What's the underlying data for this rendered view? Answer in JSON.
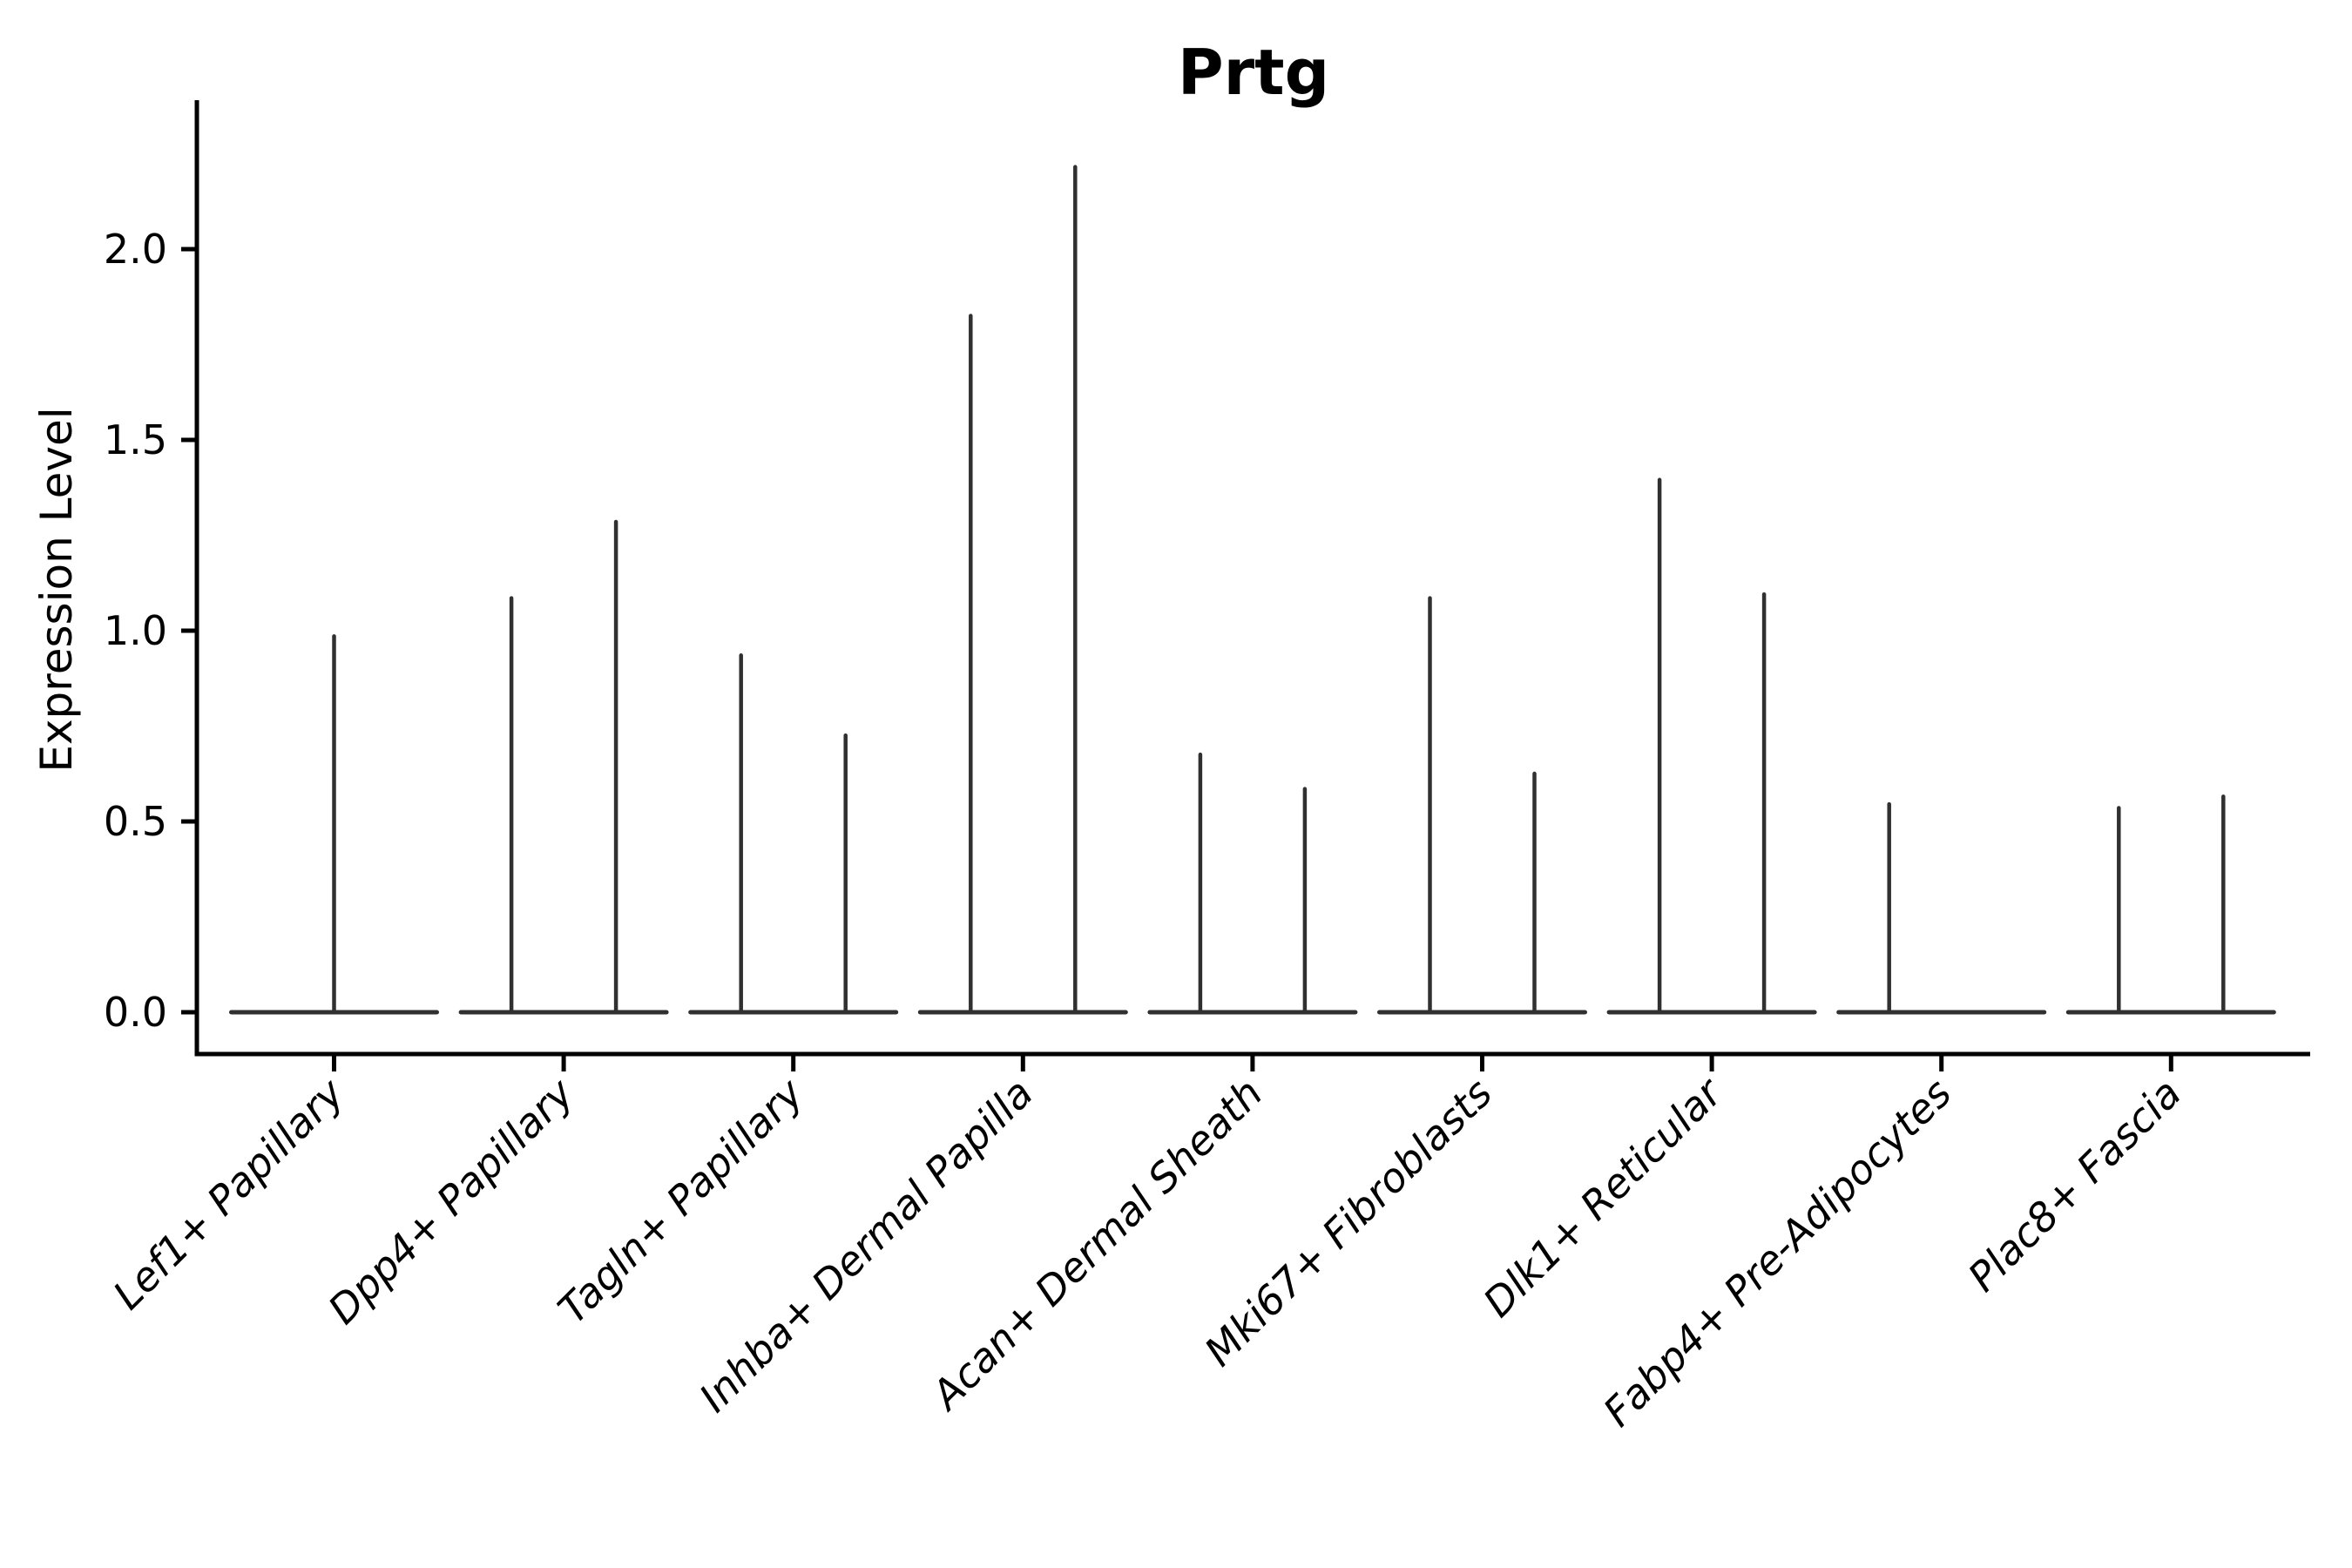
{
  "chart_data": {
    "type": "violin",
    "title": "Prtg",
    "ylabel": "Expression Level",
    "xlabel": "",
    "grid": false,
    "legend": null,
    "yticks": [
      0.0,
      0.5,
      1.0,
      1.5,
      2.0
    ],
    "ylim": [
      -0.11,
      2.39
    ],
    "baseline_value": 0.0,
    "categories": [
      "Lef1+ Papillary",
      "Dpp4+ Papillary",
      "Tagln+ Papillary",
      "Inhba+ Dermal Papilla",
      "Acan+ Dermal Sheath",
      "Mki67+ Fibroblasts",
      "Dlk1+ Reticular",
      "Fabp4+ Pre-Adipocytes",
      "Plac8+ Fascia"
    ],
    "series": [
      {
        "category": "Lef1+ Papillary",
        "violins": [
          {
            "position": "center",
            "min_expression": 0.0,
            "max_expression": 0.99
          }
        ]
      },
      {
        "category": "Dpp4+ Papillary",
        "violins": [
          {
            "position": "left",
            "min_expression": 0.0,
            "max_expression": 1.09
          },
          {
            "position": "right",
            "min_expression": 0.0,
            "max_expression": 1.29
          }
        ]
      },
      {
        "category": "Tagln+ Papillary",
        "violins": [
          {
            "position": "left",
            "min_expression": 0.0,
            "max_expression": 0.94
          },
          {
            "position": "right",
            "min_expression": 0.0,
            "max_expression": 0.73
          }
        ]
      },
      {
        "category": "Inhba+ Dermal Papilla",
        "violins": [
          {
            "position": "left",
            "min_expression": 0.0,
            "max_expression": 1.83
          },
          {
            "position": "right",
            "min_expression": 0.0,
            "max_expression": 2.22
          }
        ]
      },
      {
        "category": "Acan+ Dermal Sheath",
        "violins": [
          {
            "position": "left",
            "min_expression": 0.0,
            "max_expression": 0.68
          },
          {
            "position": "right",
            "min_expression": 0.0,
            "max_expression": 0.59
          }
        ]
      },
      {
        "category": "Mki67+ Fibroblasts",
        "violins": [
          {
            "position": "left",
            "min_expression": 0.0,
            "max_expression": 1.09
          },
          {
            "position": "right",
            "min_expression": 0.0,
            "max_expression": 0.63
          }
        ]
      },
      {
        "category": "Dlk1+ Reticular",
        "violins": [
          {
            "position": "left",
            "min_expression": 0.0,
            "max_expression": 1.4
          },
          {
            "position": "right",
            "min_expression": 0.0,
            "max_expression": 1.1
          }
        ]
      },
      {
        "category": "Fabp4+ Pre-Adipocytes",
        "violins": [
          {
            "position": "left",
            "min_expression": 0.0,
            "max_expression": 0.55
          },
          {
            "position": "right",
            "min_expression": 0.0,
            "max_expression": 0.0
          }
        ]
      },
      {
        "category": "Plac8+ Fascia",
        "violins": [
          {
            "position": "left",
            "min_expression": 0.0,
            "max_expression": 0.54
          },
          {
            "position": "right",
            "min_expression": 0.0,
            "max_expression": 0.57
          }
        ]
      }
    ],
    "style": {
      "violin_color": "#303030",
      "axis_color": "#000000",
      "text_color": "#000000",
      "background_color": "#ffffff"
    }
  }
}
